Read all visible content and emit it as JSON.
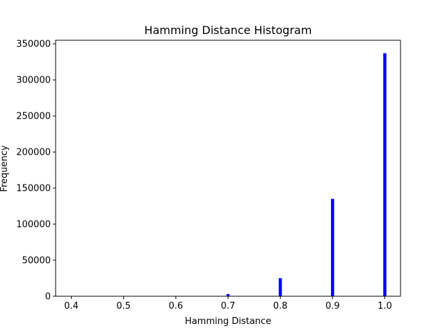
{
  "chart_data": {
    "type": "bar",
    "title": "Hamming Distance Histogram",
    "xlabel": "Hamming Distance",
    "ylabel": "Frequency",
    "xlim": [
      0.37,
      1.03
    ],
    "ylim": [
      0,
      355000
    ],
    "xticks": [
      0.4,
      0.5,
      0.6,
      0.7,
      0.8,
      0.9,
      1.0
    ],
    "xtick_labels": [
      "0.4",
      "0.5",
      "0.6",
      "0.7",
      "0.8",
      "0.9",
      "1.0"
    ],
    "yticks": [
      0,
      50000,
      100000,
      150000,
      200000,
      250000,
      300000,
      350000
    ],
    "ytick_labels": [
      "0",
      "50000",
      "100000",
      "150000",
      "200000",
      "250000",
      "300000",
      "350000"
    ],
    "bar_color": "#0000ff",
    "bar_width": 0.006,
    "bins": [
      {
        "x": 0.7,
        "value": 3000
      },
      {
        "x": 0.8,
        "value": 25000
      },
      {
        "x": 0.9,
        "value": 135000
      },
      {
        "x": 1.0,
        "value": 337000
      }
    ],
    "grid": false,
    "legend": "none"
  }
}
